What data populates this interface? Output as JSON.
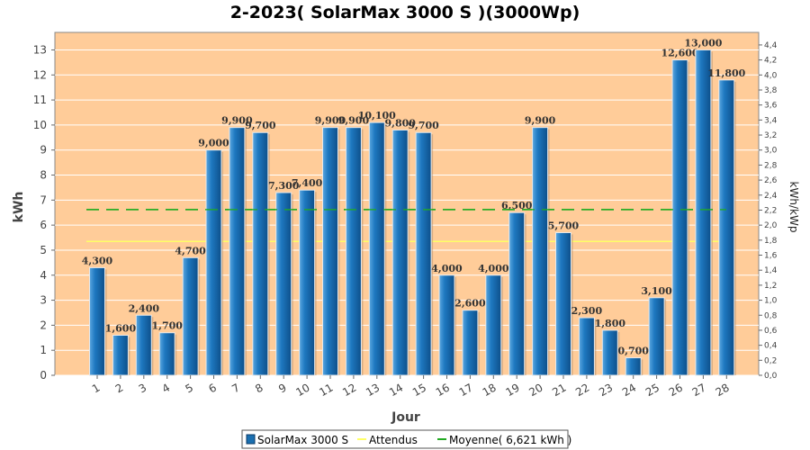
{
  "chart_data": {
    "type": "bar",
    "title": "2-2023( SolarMax 3000 S )(3000Wp)",
    "xlabel": "Jour",
    "ylabel": "kWh",
    "ylabel_right": "kWh/kWp",
    "categories": [
      "1",
      "2",
      "3",
      "4",
      "5",
      "6",
      "7",
      "8",
      "9",
      "10",
      "11",
      "12",
      "13",
      "14",
      "15",
      "16",
      "17",
      "18",
      "19",
      "20",
      "21",
      "22",
      "23",
      "24",
      "25",
      "26",
      "27",
      "28"
    ],
    "series": [
      {
        "name": "SolarMax 3000 S",
        "color": "#1a6fb0",
        "values": [
          4.3,
          1.6,
          2.4,
          1.7,
          4.7,
          9.0,
          9.9,
          9.7,
          7.3,
          7.4,
          9.9,
          9.9,
          10.1,
          9.8,
          9.7,
          4.0,
          2.6,
          4.0,
          6.5,
          9.9,
          5.7,
          2.3,
          1.8,
          0.7,
          3.1,
          12.6,
          13.0,
          11.8
        ],
        "labels": [
          "4,300",
          "1,600",
          "2,400",
          "1,700",
          "4,700",
          "9,000",
          "9,900",
          "9,700",
          "7,300",
          "7,400",
          "9,900",
          "9,900",
          "10,100",
          "9,800",
          "9,700",
          "4,000",
          "2,600",
          "4,000",
          "6,500",
          "9,900",
          "5,700",
          "2,300",
          "1,800",
          "0,700",
          "3,100",
          "12,600",
          "13,000",
          "11,800"
        ]
      }
    ],
    "reference_lines": [
      {
        "name": "Attendus",
        "value": 5.35,
        "color": "#ffff66"
      },
      {
        "name": "Moyenne( 6,621 kWh )",
        "value": 6.621,
        "color": "#22aa22"
      }
    ],
    "ylim": [
      0,
      13.7
    ],
    "yticks": [
      0,
      1,
      2,
      3,
      4,
      5,
      6,
      7,
      8,
      9,
      10,
      11,
      12,
      13
    ],
    "ylim_right": [
      0,
      4.567
    ],
    "yticks_right": [
      "0,0",
      "0,2",
      "0,4",
      "0,6",
      "0,8",
      "1,0",
      "1,2",
      "1,4",
      "1,6",
      "1,8",
      "2,0",
      "2,2",
      "2,4",
      "2,6",
      "2,8",
      "3,0",
      "3,2",
      "3,4",
      "3,6",
      "3,8",
      "4,0",
      "4,2",
      "4,4"
    ],
    "plot_background": "#ffcc99",
    "legend_position": "bottom"
  }
}
